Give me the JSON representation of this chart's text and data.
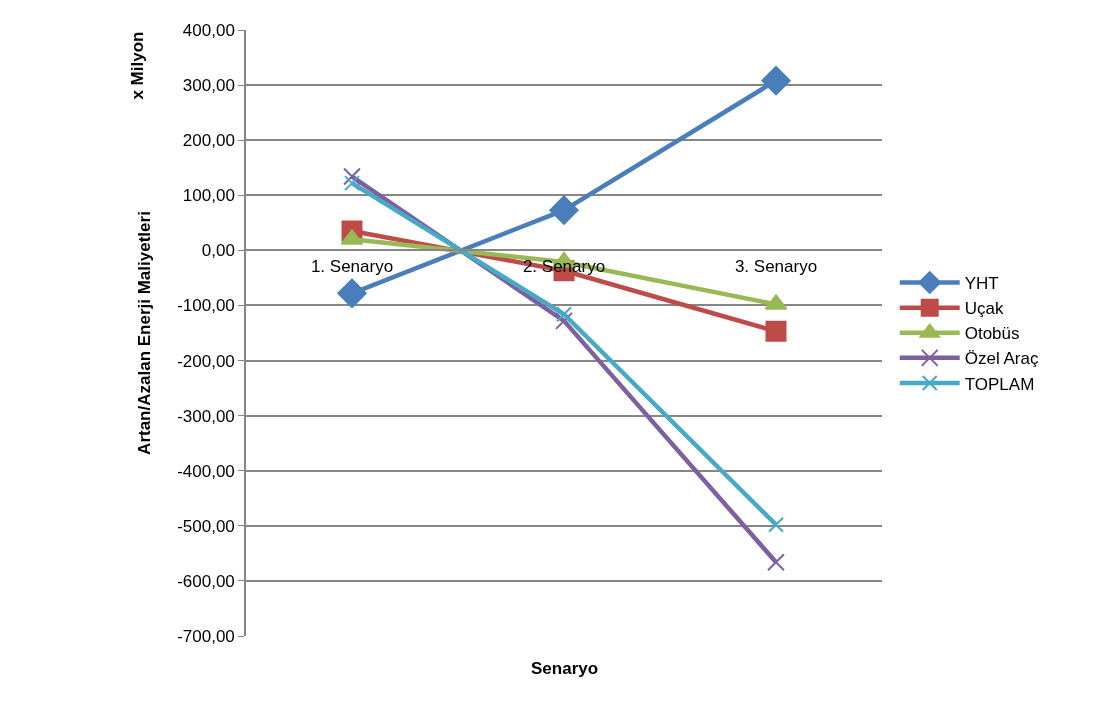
{
  "chart_data": {
    "type": "line",
    "xlabel": "Senaryo",
    "ylabel": "Artan/Azalan Enerji Maliyetleri",
    "annotations": [
      "x Milyon"
    ],
    "categories": [
      "1. Senaryo",
      "2. Senaryo",
      "3. Senaryo"
    ],
    "series": [
      {
        "name": "YHT",
        "color": "#4a7ebb",
        "marker": "diamond",
        "values": [
          -78,
          73,
          308
        ]
      },
      {
        "name": "Uçak",
        "color": "#be4b48",
        "marker": "square",
        "values": [
          35,
          -37,
          -147
        ]
      },
      {
        "name": "Otobüs",
        "color": "#98b954",
        "marker": "triangle",
        "values": [
          20,
          -21,
          -98
        ]
      },
      {
        "name": "Özel Araç",
        "color": "#7d60a0",
        "marker": "cross",
        "values": [
          134,
          -128,
          -566
        ]
      },
      {
        "name": "TOPLAM",
        "color": "#46aac5",
        "marker": "cross",
        "values": [
          122,
          -116,
          -498
        ]
      }
    ],
    "ylim": [
      -700,
      400
    ],
    "yticks": [
      {
        "value": -700,
        "label": "-700,00"
      },
      {
        "value": -600,
        "label": "-600,00"
      },
      {
        "value": -500,
        "label": "-500,00"
      },
      {
        "value": -400,
        "label": "-400,00"
      },
      {
        "value": -300,
        "label": "-300,00"
      },
      {
        "value": -200,
        "label": "-200,00"
      },
      {
        "value": -100,
        "label": "-100,00"
      },
      {
        "value": 0,
        "label": "0,00"
      },
      {
        "value": 100,
        "label": "100,00"
      },
      {
        "value": 200,
        "label": "200,00"
      },
      {
        "value": 300,
        "label": "300,00"
      },
      {
        "value": 400,
        "label": "400,00"
      }
    ],
    "grid": "y",
    "legend": "right",
    "line_style": "solid"
  }
}
